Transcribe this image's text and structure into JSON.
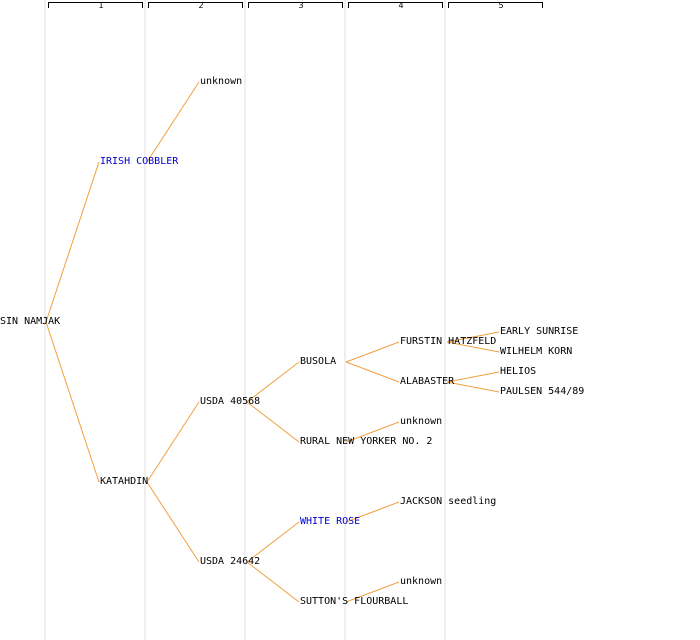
{
  "colors": {
    "line": "#f0a040",
    "text": "#000000",
    "highlight": "#0000cc",
    "guide": "#efefef"
  },
  "generations": [
    "1",
    "2",
    "3",
    "4",
    "5"
  ],
  "tree": {
    "root": "SIN NAMJAK",
    "nodes": [
      {
        "id": "irish",
        "label": "IRISH COBBLER",
        "parent": "root",
        "highlight": true
      },
      {
        "id": "unk1",
        "label": "unknown",
        "parent": "irish"
      },
      {
        "id": "katahdin",
        "label": "KATAHDIN",
        "parent": "root"
      },
      {
        "id": "usda40568",
        "label": "USDA 40568",
        "parent": "katahdin"
      },
      {
        "id": "usda24642",
        "label": "USDA 24642",
        "parent": "katahdin"
      },
      {
        "id": "busola",
        "label": "BUSOLA",
        "parent": "usda40568"
      },
      {
        "id": "rural",
        "label": "RURAL NEW YORKER NO. 2",
        "parent": "usda40568"
      },
      {
        "id": "whiterose",
        "label": "WHITE ROSE",
        "parent": "usda24642",
        "highlight": true
      },
      {
        "id": "sutton",
        "label": "SUTTON'S FLOURBALL",
        "parent": "usda24642"
      },
      {
        "id": "furstin",
        "label": "FURSTIN HATZFELD",
        "parent": "busola"
      },
      {
        "id": "alabaster",
        "label": "ALABASTER",
        "parent": "busola"
      },
      {
        "id": "unk2",
        "label": "unknown",
        "parent": "rural"
      },
      {
        "id": "jackson",
        "label": "JACKSON seedling",
        "parent": "whiterose"
      },
      {
        "id": "unk3",
        "label": "unknown",
        "parent": "sutton"
      },
      {
        "id": "early",
        "label": "EARLY SUNRISE",
        "parent": "furstin"
      },
      {
        "id": "wilhelm",
        "label": "WILHELM KORN",
        "parent": "furstin"
      },
      {
        "id": "helios",
        "label": "HELIOS",
        "parent": "alabaster"
      },
      {
        "id": "paulsen",
        "label": "PAULSEN 544/89",
        "parent": "alabaster"
      }
    ]
  }
}
